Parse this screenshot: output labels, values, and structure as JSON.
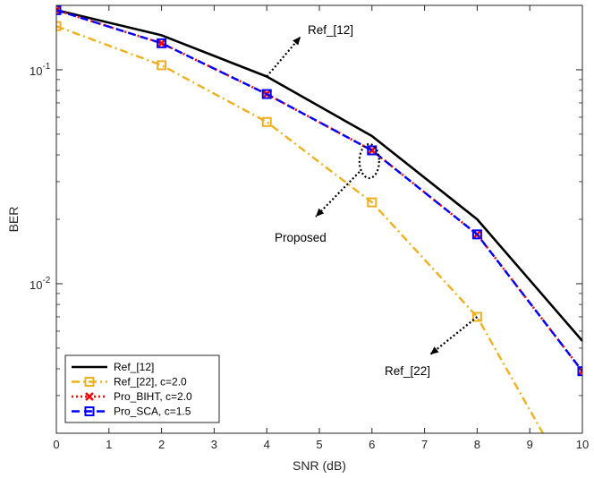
{
  "chart_data": {
    "type": "line",
    "title": "",
    "xlabel": "SNR (dB)",
    "ylabel": "BER",
    "xscale": "linear",
    "yscale": "log",
    "xlim": [
      0,
      10
    ],
    "ylim": [
      0.002,
      0.2
    ],
    "grid": false,
    "legend_position": "bottom-left",
    "x_ticks": [
      0,
      1,
      2,
      3,
      4,
      5,
      6,
      7,
      8,
      9,
      10
    ],
    "y_ticks": [
      {
        "value": 0.1,
        "base": "10",
        "exp": "-1"
      },
      {
        "value": 0.01,
        "base": "10",
        "exp": "-2"
      }
    ],
    "series": [
      {
        "name": "Ref_[12]",
        "color": "#000000",
        "style": "solid",
        "marker": "none",
        "x": [
          0,
          2,
          4,
          6,
          8,
          10
        ],
        "y": [
          0.19,
          0.145,
          0.093,
          0.049,
          0.02,
          0.0054
        ]
      },
      {
        "name": "Ref_[22], c=2.0",
        "color": "#EDB120",
        "style": "dashdot",
        "marker": "square",
        "x": [
          0,
          2,
          4,
          6,
          8,
          9.25
        ],
        "y": [
          0.16,
          0.105,
          0.057,
          0.024,
          0.007,
          0.002
        ]
      },
      {
        "name": "Pro_BIHT, c=2.0",
        "color": "#FF0000",
        "style": "dotted",
        "marker": "x",
        "x": [
          0,
          2,
          4,
          6,
          8,
          10
        ],
        "y": [
          0.19,
          0.133,
          0.077,
          0.042,
          0.017,
          0.0039
        ]
      },
      {
        "name": "Pro_SCA, c=1.5",
        "color": "#0000FF",
        "style": "dashed",
        "marker": "square",
        "x": [
          0,
          2,
          4,
          6,
          8,
          10
        ],
        "y": [
          0.19,
          0.133,
          0.077,
          0.042,
          0.017,
          0.0039
        ]
      }
    ],
    "annotations": [
      {
        "text": "Ref_[12]",
        "target_series": "Ref_[12]",
        "at_x": 4
      },
      {
        "text": "Proposed",
        "target_series": "Pro_SCA, c=1.5",
        "at_x": 6
      },
      {
        "text": "Ref_[22]",
        "target_series": "Ref_[22], c=2.0",
        "at_x": 8
      }
    ]
  }
}
